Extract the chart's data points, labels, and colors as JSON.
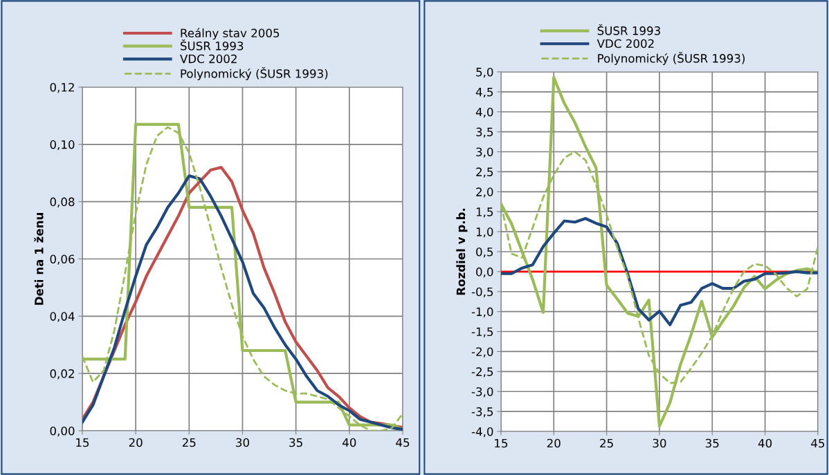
{
  "chart_data": [
    {
      "type": "line",
      "ylabel": "Deti na 1 ženu",
      "legend": "top",
      "grid": true,
      "marker": "none",
      "x": [
        15,
        16,
        17,
        18,
        19,
        20,
        21,
        22,
        23,
        24,
        25,
        26,
        27,
        28,
        29,
        30,
        31,
        32,
        33,
        34,
        35,
        36,
        37,
        38,
        39,
        40,
        41,
        42,
        43,
        44,
        45
      ],
      "xlim": [
        15,
        45
      ],
      "xticks": [
        15,
        20,
        25,
        30,
        35,
        40,
        45
      ],
      "ylim": [
        0,
        0.12
      ],
      "yticks": [
        {
          "value": 0,
          "label": "0,00"
        },
        {
          "value": 0.02,
          "label": "0,02"
        },
        {
          "value": 0.04,
          "label": "0,04"
        },
        {
          "value": 0.06,
          "label": "0,06"
        },
        {
          "value": 0.08,
          "label": "0,08"
        },
        {
          "value": 0.1,
          "label": "0,10"
        },
        {
          "value": 0.12,
          "label": "0,12"
        }
      ],
      "series": [
        {
          "name": "Reálny stav 2005",
          "color": "#c0504d",
          "line_style": "solid",
          "values": [
            0.004,
            0.01,
            0.019,
            0.028,
            0.037,
            0.045,
            0.054,
            0.061,
            0.068,
            0.075,
            0.083,
            0.087,
            0.091,
            0.092,
            0.087,
            0.077,
            0.069,
            0.057,
            0.048,
            0.038,
            0.031,
            0.026,
            0.021,
            0.015,
            0.012,
            0.008,
            0.005,
            0.003,
            0.0025,
            0.0018,
            0.0012
          ]
        },
        {
          "name": "ŠUSR 1993",
          "color": "#9bbb59",
          "line_style": "solid",
          "values": [
            0.025,
            0.025,
            0.025,
            0.025,
            0.025,
            0.107,
            0.107,
            0.107,
            0.107,
            0.107,
            0.078,
            0.078,
            0.078,
            0.078,
            0.078,
            0.028,
            0.028,
            0.028,
            0.028,
            0.028,
            0.01,
            0.01,
            0.01,
            0.01,
            0.01,
            0.002,
            0.002,
            0.002,
            0.002,
            0.002,
            0.0005
          ]
        },
        {
          "name": "VDC 2002",
          "color": "#1f497d",
          "line_style": "solid",
          "values": [
            0.003,
            0.009,
            0.019,
            0.029,
            0.042,
            0.054,
            0.065,
            0.071,
            0.078,
            0.083,
            0.089,
            0.088,
            0.082,
            0.075,
            0.067,
            0.059,
            0.048,
            0.043,
            0.036,
            0.03,
            0.025,
            0.019,
            0.014,
            0.012,
            0.009,
            0.007,
            0.004,
            0.003,
            0.002,
            0.001,
            0.0005
          ]
        },
        {
          "name": "Polynomický (ŠUSR 1993)",
          "color": "#9bbb59",
          "line_style": "dashed",
          "values": [
            0.026,
            0.017,
            0.021,
            0.035,
            0.055,
            0.076,
            0.093,
            0.103,
            0.106,
            0.104,
            0.097,
            0.085,
            0.071,
            0.057,
            0.044,
            0.033,
            0.025,
            0.019,
            0.016,
            0.014,
            0.013,
            0.013,
            0.012,
            0.011,
            0.008,
            0.005,
            0.002,
            0.0,
            0.0,
            0.001,
            0.006
          ]
        }
      ]
    },
    {
      "type": "line",
      "ylabel": "Rozdiel v p.b.",
      "legend": "top",
      "grid": true,
      "marker": "none",
      "x": [
        15,
        16,
        17,
        18,
        19,
        20,
        21,
        22,
        23,
        24,
        25,
        26,
        27,
        28,
        29,
        30,
        31,
        32,
        33,
        34,
        35,
        36,
        37,
        38,
        39,
        40,
        41,
        42,
        43,
        44,
        45
      ],
      "xlim": [
        15,
        45
      ],
      "xticks": [
        15,
        20,
        25,
        30,
        35,
        40,
        45
      ],
      "ylim": [
        -4,
        5
      ],
      "yticks": [
        {
          "value": -4,
          "label": "-4,0"
        },
        {
          "value": -3.5,
          "label": "-3,5"
        },
        {
          "value": -3,
          "label": "-3,0"
        },
        {
          "value": -2.5,
          "label": "-2,5"
        },
        {
          "value": -2,
          "label": "-2,0"
        },
        {
          "value": -1.5,
          "label": "-1,5"
        },
        {
          "value": -1,
          "label": "-1,0"
        },
        {
          "value": -0.5,
          "label": "-0,5"
        },
        {
          "value": 0,
          "label": "0,0"
        },
        {
          "value": 0.5,
          "label": "0,5"
        },
        {
          "value": 1,
          "label": "1,0"
        },
        {
          "value": 1.5,
          "label": "1,5"
        },
        {
          "value": 2,
          "label": "2,0"
        },
        {
          "value": 2.5,
          "label": "2,5"
        },
        {
          "value": 3,
          "label": "3,0"
        },
        {
          "value": 3.5,
          "label": "3,5"
        },
        {
          "value": 4,
          "label": "4,0"
        },
        {
          "value": 4.5,
          "label": "4,5"
        },
        {
          "value": 5,
          "label": "5,0"
        }
      ],
      "ref_lines": [
        {
          "axis": "y",
          "value": 0,
          "color": "#ff0000",
          "line_style": "solid"
        }
      ],
      "series": [
        {
          "name": "ŠUSR 1993",
          "color": "#9bbb59",
          "line_style": "solid",
          "values": [
            1.7,
            1.2,
            0.5,
            -0.2,
            -1.02,
            4.86,
            4.21,
            3.73,
            3.13,
            2.6,
            -0.34,
            -0.68,
            -1.04,
            -1.12,
            -0.71,
            -3.87,
            -3.28,
            -2.32,
            -1.58,
            -0.74,
            -1.64,
            -1.24,
            -0.87,
            -0.4,
            -0.12,
            -0.43,
            -0.22,
            -0.06,
            0.03,
            0.07,
            -0.03
          ]
        },
        {
          "name": "VDC 2002",
          "color": "#1f497d",
          "line_style": "solid",
          "values": [
            -0.05,
            -0.05,
            0.09,
            0.17,
            0.63,
            0.96,
            1.27,
            1.24,
            1.33,
            1.21,
            1.12,
            0.71,
            -0.06,
            -0.93,
            -1.21,
            -0.99,
            -1.33,
            -0.84,
            -0.77,
            -0.42,
            -0.3,
            -0.42,
            -0.42,
            -0.24,
            -0.19,
            -0.05,
            -0.05,
            -0.03,
            0.0,
            -0.03,
            -0.03
          ]
        },
        {
          "name": "Polynomický (ŠUSR 1993)",
          "color": "#9bbb59",
          "line_style": "dashed",
          "values": [
            1.7,
            0.45,
            0.35,
            1.1,
            1.86,
            2.42,
            2.85,
            3.0,
            2.79,
            2.17,
            1.42,
            0.6,
            -0.12,
            -1.16,
            -2.1,
            -2.55,
            -2.79,
            -2.76,
            -2.42,
            -2.04,
            -1.61,
            -0.99,
            -0.43,
            0.0,
            0.19,
            0.15,
            -0.06,
            -0.4,
            -0.62,
            -0.43,
            0.62
          ]
        }
      ]
    }
  ]
}
